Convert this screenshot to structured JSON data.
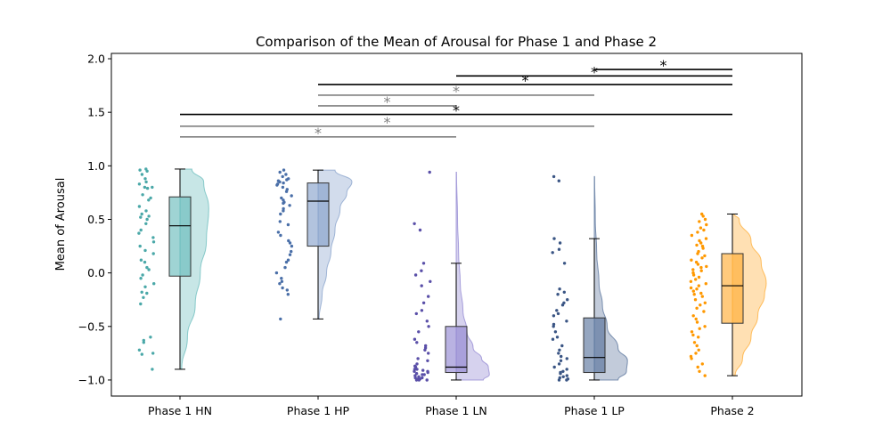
{
  "chart_data": {
    "type": "raincloud",
    "title": "Comparison of the Mean of Arousal for Phase 1 and Phase 2",
    "xlabel": "",
    "ylabel": "Mean of Arousal",
    "ylim": [
      -1.15,
      2.05
    ],
    "yticks": [
      -1.0,
      -0.5,
      0.0,
      0.5,
      1.0,
      1.5,
      2.0
    ],
    "ytick_labels": [
      "−1.0",
      "−0.5",
      "0.0",
      "0.5",
      "1.0",
      "1.5",
      "2.0"
    ],
    "categories": [
      "Phase 1 HN",
      "Phase 1 HP",
      "Phase 1 LN",
      "Phase 1 LP",
      "Phase 2"
    ],
    "colors": [
      "#5fb8b8",
      "#7f9bc8",
      "#8a7fcf",
      "#4f6b96",
      "#ffa726"
    ],
    "point_colors": [
      "#4aa8a8",
      "#4a6fa8",
      "#5a4fa8",
      "#3a5584",
      "#ff9800"
    ],
    "boxes": [
      {
        "whisker_low": -0.9,
        "q1": -0.03,
        "median": 0.44,
        "q3": 0.71,
        "whisker_high": 0.97
      },
      {
        "whisker_low": -0.43,
        "q1": 0.25,
        "median": 0.67,
        "q3": 0.84,
        "whisker_high": 0.96
      },
      {
        "whisker_low": -1.0,
        "q1": -0.93,
        "median": -0.88,
        "q3": -0.5,
        "whisker_high": 0.09
      },
      {
        "whisker_low": -1.0,
        "q1": -0.93,
        "median": -0.79,
        "q3": -0.42,
        "whisker_high": 0.32
      },
      {
        "whisker_low": -0.96,
        "q1": -0.47,
        "median": -0.12,
        "q3": 0.18,
        "whisker_high": 0.55
      }
    ],
    "points": [
      [
        0.97,
        0.95,
        0.96,
        0.92,
        0.88,
        0.85,
        0.83,
        0.8,
        0.79,
        0.8,
        0.73,
        0.7,
        0.68,
        0.62,
        0.58,
        0.55,
        0.53,
        0.52,
        0.5,
        0.46,
        0.4,
        0.37,
        0.33,
        0.29,
        0.25,
        0.21,
        0.18,
        0.12,
        0.1,
        0.05,
        0.03,
        -0.02,
        -0.05,
        -0.1,
        -0.13,
        -0.18,
        -0.19,
        -0.23,
        -0.29,
        -0.6,
        -0.63,
        -0.65,
        -0.72,
        -0.75,
        -0.76,
        -0.9
      ],
      [
        0.96,
        0.94,
        0.92,
        0.9,
        0.88,
        0.87,
        0.86,
        0.85,
        0.84,
        0.83,
        0.82,
        0.8,
        0.78,
        0.76,
        0.72,
        0.7,
        0.68,
        0.66,
        0.65,
        0.63,
        0.6,
        0.58,
        0.55,
        0.48,
        0.45,
        0.38,
        0.35,
        0.3,
        0.28,
        0.25,
        0.2,
        0.17,
        0.12,
        0.1,
        0.05,
        0.0,
        -0.05,
        -0.08,
        -0.1,
        -0.14,
        -0.16,
        -0.2,
        -0.43
      ],
      [
        0.94,
        0.46,
        0.4,
        0.09,
        0.02,
        -0.02,
        -0.08,
        -0.12,
        -0.22,
        -0.28,
        -0.35,
        -0.38,
        -0.45,
        -0.5,
        -0.55,
        -0.62,
        -0.65,
        -0.68,
        -0.7,
        -0.72,
        -0.75,
        -0.8,
        -0.82,
        -0.85,
        -0.87,
        -0.88,
        -0.9,
        -0.91,
        -0.92,
        -0.93,
        -0.94,
        -0.95,
        -0.96,
        -0.97,
        -0.98,
        -0.98,
        -0.99,
        -0.99,
        -1.0,
        -1.0,
        -1.0,
        -0.9,
        -0.92,
        -0.95
      ],
      [
        0.9,
        0.86,
        0.32,
        0.28,
        0.22,
        0.19,
        0.09,
        -0.15,
        -0.18,
        -0.2,
        -0.25,
        -0.28,
        -0.3,
        -0.35,
        -0.38,
        -0.4,
        -0.45,
        -0.48,
        -0.5,
        -0.55,
        -0.6,
        -0.62,
        -0.68,
        -0.72,
        -0.75,
        -0.78,
        -0.8,
        -0.82,
        -0.85,
        -0.88,
        -0.9,
        -0.92,
        -0.94,
        -0.96,
        -0.97,
        -0.98,
        -0.99,
        -1.0,
        -1.0,
        -0.93
      ],
      [
        0.55,
        0.53,
        0.5,
        0.48,
        0.45,
        0.42,
        0.4,
        0.38,
        0.35,
        0.32,
        0.3,
        0.28,
        0.26,
        0.25,
        0.23,
        0.2,
        0.18,
        0.16,
        0.14,
        0.12,
        0.1,
        0.08,
        0.06,
        0.05,
        0.03,
        0.02,
        0.0,
        -0.02,
        -0.04,
        -0.06,
        -0.08,
        -0.1,
        -0.12,
        -0.14,
        -0.15,
        -0.17,
        -0.19,
        -0.2,
        -0.22,
        -0.25,
        -0.28,
        -0.3,
        -0.33,
        -0.36,
        -0.4,
        -0.43,
        -0.46,
        -0.5,
        -0.52,
        -0.55,
        -0.58,
        -0.6,
        -0.65,
        -0.68,
        -0.72,
        -0.75,
        -0.78,
        -0.8,
        -0.85,
        -0.88,
        -0.92,
        -0.96
      ]
    ],
    "densities": [
      {
        "y": [
          -0.9,
          -0.6,
          -0.3,
          0.0,
          0.3,
          0.6,
          0.85,
          0.97
        ],
        "w": [
          0.05,
          0.22,
          0.45,
          0.6,
          0.78,
          0.85,
          0.7,
          0.35
        ]
      },
      {
        "y": [
          -0.43,
          -0.2,
          0.0,
          0.2,
          0.4,
          0.6,
          0.75,
          0.85,
          0.96
        ],
        "w": [
          0.03,
          0.12,
          0.25,
          0.38,
          0.5,
          0.65,
          0.85,
          1.0,
          0.5
        ]
      },
      {
        "y": [
          -1.0,
          -0.95,
          -0.88,
          -0.8,
          -0.7,
          -0.55,
          -0.35,
          -0.1,
          0.2,
          0.5,
          0.94
        ],
        "w": [
          0.8,
          0.98,
          0.95,
          0.75,
          0.5,
          0.32,
          0.2,
          0.12,
          0.07,
          0.04,
          0.01
        ]
      },
      {
        "y": [
          -1.0,
          -0.92,
          -0.82,
          -0.7,
          -0.5,
          -0.3,
          -0.1,
          0.2,
          0.5,
          0.9
        ],
        "w": [
          0.7,
          0.95,
          0.98,
          0.7,
          0.38,
          0.24,
          0.14,
          0.07,
          0.03,
          0.01
        ]
      },
      {
        "y": [
          -0.96,
          -0.8,
          -0.6,
          -0.4,
          -0.2,
          -0.1,
          0.1,
          0.3,
          0.5,
          0.55
        ],
        "w": [
          0.08,
          0.3,
          0.55,
          0.75,
          0.95,
          1.0,
          0.85,
          0.55,
          0.2,
          0.05
        ]
      }
    ],
    "significance": [
      {
        "from": 3,
        "to": 4,
        "y": 1.9,
        "color": "black",
        "label": "*"
      },
      {
        "from": 2,
        "to": 4,
        "y": 1.84,
        "color": "black",
        "label": "*"
      },
      {
        "from": 1,
        "to": 4,
        "y": 1.76,
        "color": "black",
        "label": "*"
      },
      {
        "from": 1,
        "to": 3,
        "y": 1.66,
        "color": "gray",
        "label": "*"
      },
      {
        "from": 1,
        "to": 2,
        "y": 1.56,
        "color": "gray",
        "label": "*"
      },
      {
        "from": 0,
        "to": 4,
        "y": 1.48,
        "color": "black",
        "label": "*"
      },
      {
        "from": 0,
        "to": 3,
        "y": 1.37,
        "color": "gray",
        "label": "*"
      },
      {
        "from": 0,
        "to": 2,
        "y": 1.27,
        "color": "gray",
        "label": "*"
      }
    ]
  }
}
